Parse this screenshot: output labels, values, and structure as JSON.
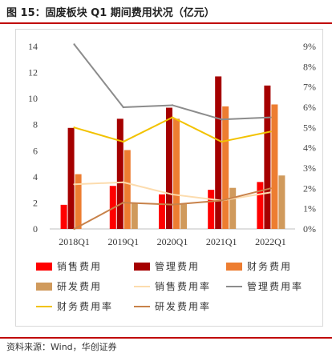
{
  "figure": {
    "title": "图 15：固废板块 Q1 期间费用状况（亿元）",
    "source": "资料来源：Wind，华创证券"
  },
  "chart_data": {
    "type": "bar",
    "categories": [
      "2018Q1",
      "2019Q1",
      "2020Q1",
      "2021Q1",
      "2022Q1"
    ],
    "ylim": [
      0,
      14
    ],
    "y_ticks": [
      "0",
      "2",
      "4",
      "6",
      "8",
      "10",
      "12",
      "14"
    ],
    "y2lim": [
      0,
      9
    ],
    "y2_ticks": [
      "0%",
      "1%",
      "2%",
      "3%",
      "4%",
      "5%",
      "6%",
      "7%",
      "8%",
      "9%"
    ],
    "bar_series": [
      {
        "name": "销售费用",
        "values": [
          1.85,
          3.3,
          2.65,
          3.0,
          3.6
        ],
        "color": "#ff0000"
      },
      {
        "name": "管理费用",
        "values": [
          7.75,
          8.45,
          9.3,
          11.7,
          11.0
        ],
        "color": "#a50000"
      },
      {
        "name": "财务费用",
        "values": [
          4.2,
          6.05,
          8.45,
          9.4,
          9.55
        ],
        "color": "#ed7d31"
      },
      {
        "name": "研发费用",
        "values": [
          0,
          1.95,
          1.9,
          3.15,
          4.1
        ],
        "color": "#d09a5c"
      }
    ],
    "line_series": [
      {
        "name": "销售费用率",
        "values": [
          2.2,
          2.3,
          1.7,
          1.4,
          1.8
        ],
        "color": "#fcdcae"
      },
      {
        "name": "管理费用率",
        "values": [
          9.1,
          6.0,
          6.1,
          5.4,
          5.5
        ],
        "color": "#8c8c8c"
      },
      {
        "name": "财务费用率",
        "values": [
          5.0,
          4.3,
          5.5,
          4.3,
          4.8
        ],
        "color": "#f2c200"
      },
      {
        "name": "研发费用率",
        "values": [
          0.0,
          1.3,
          1.2,
          1.4,
          2.0
        ],
        "color": "#c8824a"
      }
    ],
    "grid": false,
    "legend_position": "bottom"
  }
}
